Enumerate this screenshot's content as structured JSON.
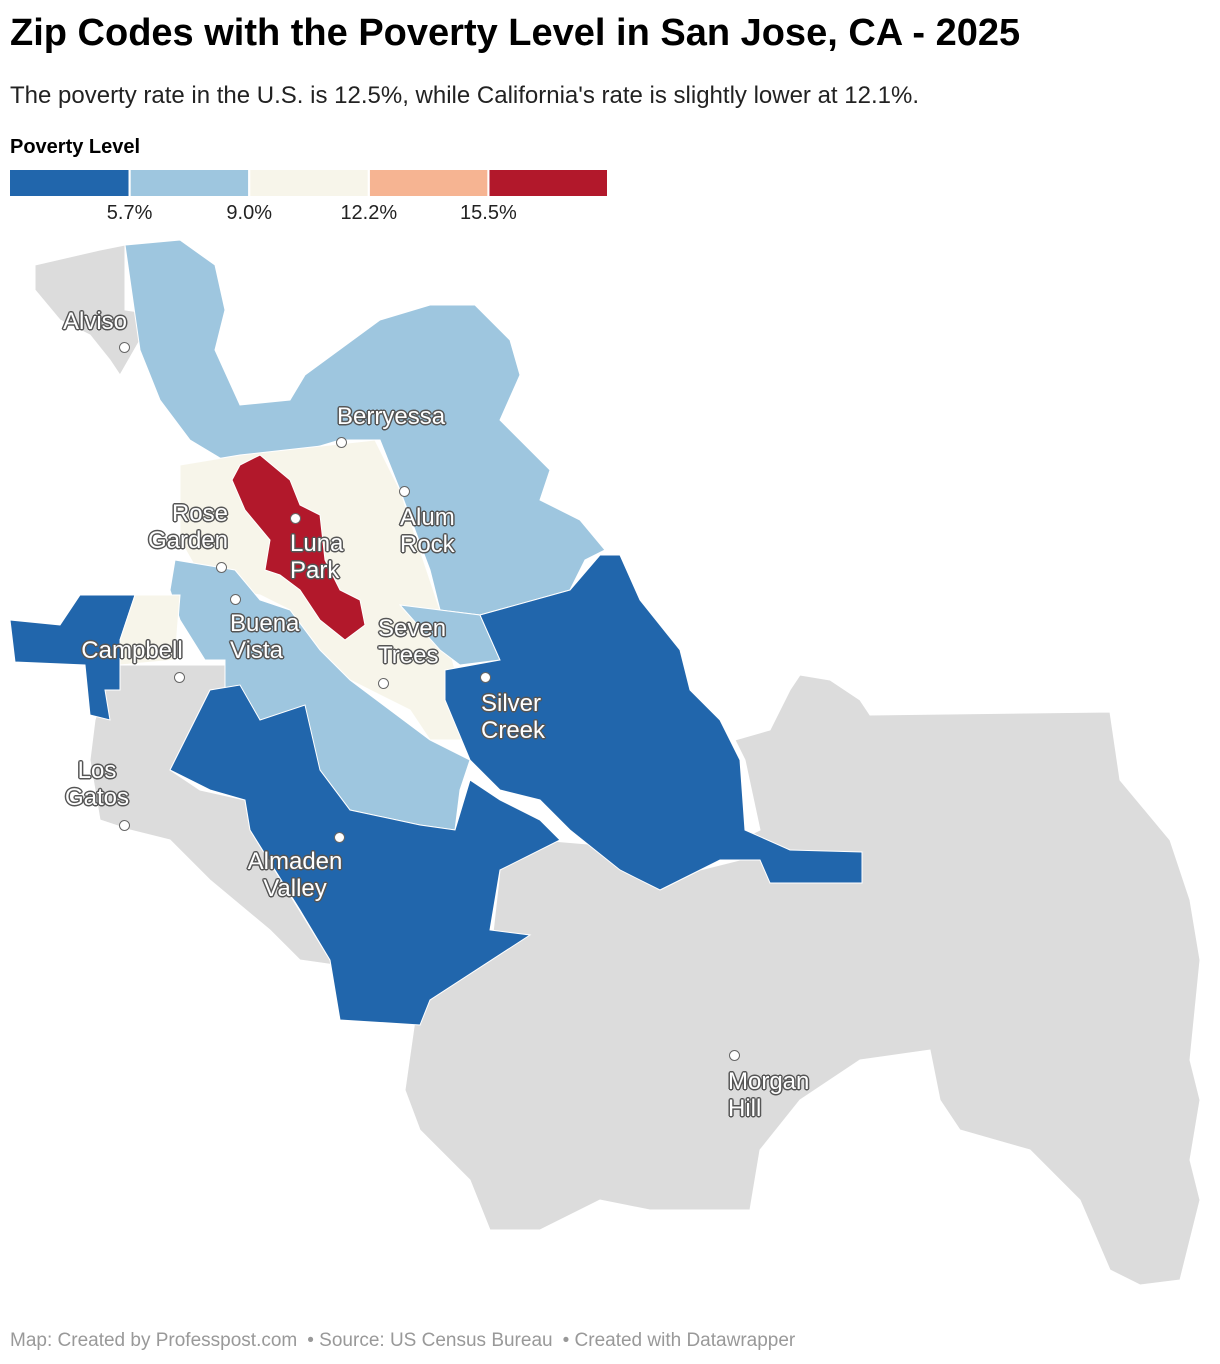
{
  "header": {
    "title": "Zip Codes with the Poverty Level in San Jose, CA - 2025",
    "subtitle": "The poverty rate in the U.S. is 12.5%, while California's rate is slightly lower at 12.1%."
  },
  "legend": {
    "title": "Poverty Level",
    "colors": [
      "#2166ac",
      "#9ec6df",
      "#f7f5ea",
      "#f6b492",
      "#b2182b"
    ],
    "breaks": [
      {
        "value": 5.7,
        "label": "5.7%"
      },
      {
        "value": 9.0,
        "label": "9.0%"
      },
      {
        "value": 12.2,
        "label": "12.2%"
      },
      {
        "value": 15.5,
        "label": "15.5%"
      }
    ]
  },
  "places": [
    "Alviso",
    "Berryessa",
    "Rose Garden",
    "Luna Park",
    "Alum Rock",
    "Buena Vista",
    "Seven Trees",
    "Campbell",
    "Silver Creek",
    "Los Gatos",
    "Almaden Valley",
    "Morgan Hill"
  ],
  "footer": [
    "Map: Created by Professpost.com",
    "• Source: US Census Bureau",
    "• Created with Datawrapper"
  ]
}
